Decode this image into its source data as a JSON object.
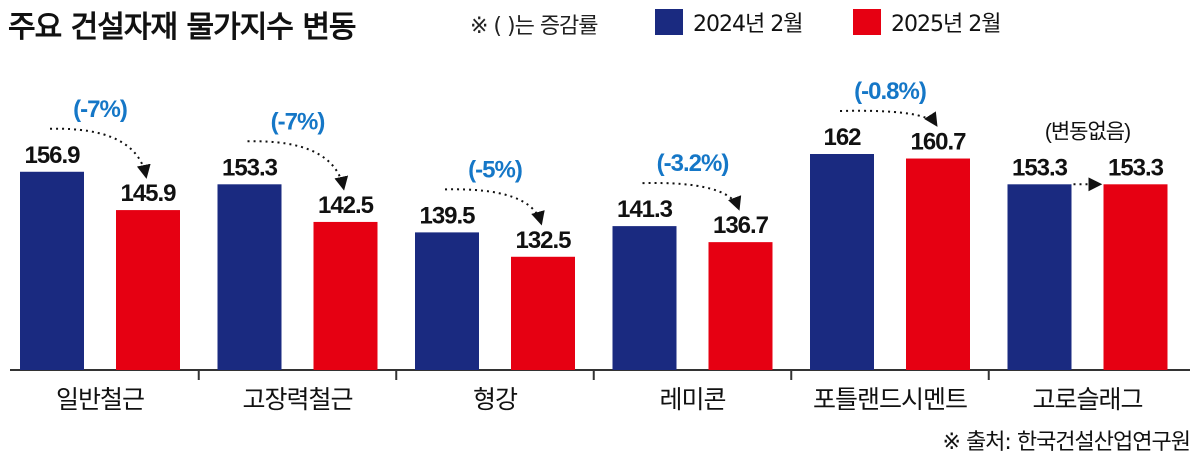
{
  "title": "주요 건설자재 물가지수 변동",
  "note": "※ (  )는 증감률",
  "legend": [
    {
      "label": "2024년 2월",
      "color": "#1a2a80"
    },
    {
      "label": "2025년 2월",
      "color": "#e60012"
    }
  ],
  "source": "※ 출처: 한국건설산업연구원",
  "colors": {
    "change_label": "#1577c7",
    "axis": "#333333"
  },
  "chart_data": {
    "type": "bar",
    "title": "주요 건설자재 물가지수 변동",
    "categories": [
      "일반철근",
      "고장력철근",
      "형강",
      "레미콘",
      "포틀랜드시멘트",
      "고로슬래그"
    ],
    "series": [
      {
        "name": "2024년 2월",
        "values": [
          156.9,
          153.3,
          139.5,
          141.3,
          162,
          153.3
        ],
        "labels": [
          "156.9",
          "153.3",
          "139.5",
          "141.3",
          "162",
          "153.3"
        ]
      },
      {
        "name": "2025년 2월",
        "values": [
          145.9,
          142.5,
          132.5,
          136.7,
          160.7,
          153.3
        ],
        "labels": [
          "145.9",
          "142.5",
          "132.5",
          "136.7",
          "160.7",
          "153.3"
        ]
      }
    ],
    "changes": [
      "(-7%)",
      "(-7%)",
      "(-5%)",
      "(-3.2%)",
      "(-0.8%)",
      "(변동없음)"
    ],
    "legend_position": "top-right",
    "grid": false
  }
}
